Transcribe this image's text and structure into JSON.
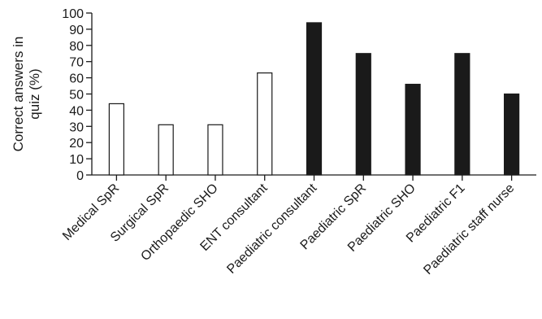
{
  "chart_data": {
    "type": "bar",
    "ylabel_lines": [
      "Correct answers in",
      "quiz (%)"
    ],
    "ylim": [
      0,
      100
    ],
    "yticks": [
      0,
      10,
      20,
      30,
      40,
      50,
      60,
      70,
      80,
      90,
      100
    ],
    "grid": false,
    "legend": "none",
    "categories": [
      "Medical SpR",
      "Surgical SpR",
      "Orthopaedic SHO",
      "ENT consultant",
      "Paediatric consultant",
      "Paediatric SpR",
      "Paediatric SHO",
      "Paediatric F1",
      "Paediatric staff nurse"
    ],
    "values": [
      44,
      31,
      31,
      63,
      94,
      75,
      56,
      75,
      50
    ],
    "bar_fill": [
      "#ffffff",
      "#ffffff",
      "#ffffff",
      "#ffffff",
      "#1a1a1a",
      "#1a1a1a",
      "#1a1a1a",
      "#1a1a1a",
      "#1a1a1a"
    ],
    "bar_stroke": "#1a1a1a"
  }
}
